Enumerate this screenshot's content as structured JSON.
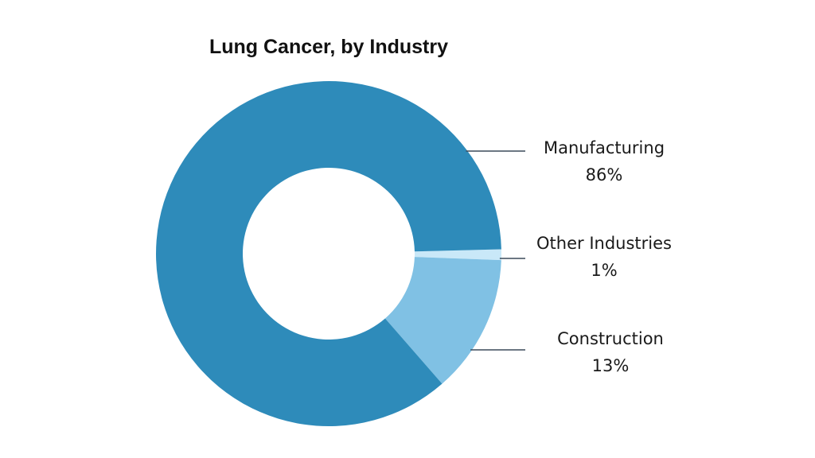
{
  "chart_data": {
    "type": "pie",
    "subtype": "donut",
    "title": "Lung Cancer, by Industry",
    "slices": [
      {
        "name": "Manufacturing",
        "value": 86,
        "label": "86%",
        "color": "#2e8bba"
      },
      {
        "name": "Other Industries",
        "value": 1,
        "label": "1%",
        "color": "#c9e8f8"
      },
      {
        "name": "Construction",
        "value": 13,
        "label": "13%",
        "color": "#80c1e4"
      }
    ],
    "legend": "none",
    "leader_color": "#3b4a5a"
  }
}
